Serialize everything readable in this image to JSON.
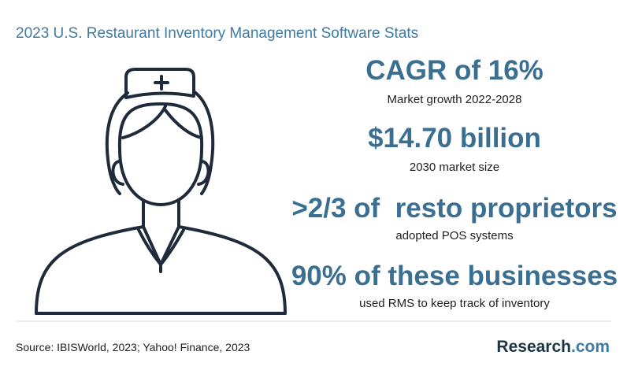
{
  "header": {
    "title": "2023 U.S. Restaurant Inventory Management Software Stats"
  },
  "stats": [
    {
      "headline": "CAGR of 16%",
      "caption": "Market growth 2022-2028"
    },
    {
      "headline": "$14.70 billion",
      "caption": "2030 market size"
    },
    {
      "headline": ">2/3 of  resto proprietors",
      "caption": "adopted POS systems"
    },
    {
      "headline": "90% of these businesses",
      "caption": "used RMS to keep track of inventory"
    }
  ],
  "footer": {
    "source": "Source: IBISWorld, 2023; Yahoo! Finance, 2023",
    "logo": {
      "name": "Research",
      "suffix": ".com"
    }
  }
}
